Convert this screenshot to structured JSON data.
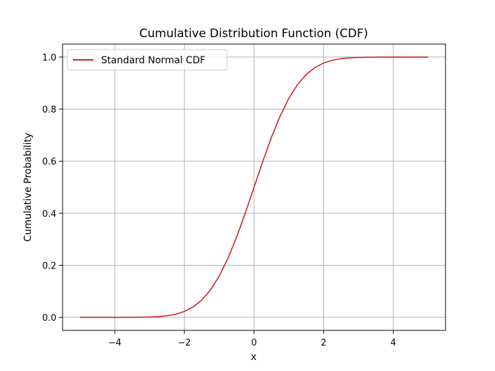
{
  "chart_data": {
    "type": "line",
    "title": "Cumulative Distribution Function (CDF)",
    "xlabel": "x",
    "ylabel": "Cumulative Probability",
    "xlim": [
      -5.5,
      5.5
    ],
    "ylim": [
      -0.05,
      1.05
    ],
    "x_ticks": [
      -4,
      -2,
      0,
      2,
      4
    ],
    "x_tick_labels": [
      "−4",
      "−2",
      "0",
      "2",
      "4"
    ],
    "y_ticks": [
      0.0,
      0.2,
      0.4,
      0.6,
      0.8,
      1.0
    ],
    "y_tick_labels": [
      "0.0",
      "0.2",
      "0.4",
      "0.6",
      "0.8",
      "1.0"
    ],
    "grid": true,
    "legend_position": "top-left",
    "series": [
      {
        "name": "Standard Normal CDF",
        "color": "#cc2222",
        "x": [
          -5.0,
          -4.5,
          -4.0,
          -3.5,
          -3.0,
          -2.75,
          -2.5,
          -2.25,
          -2.0,
          -1.75,
          -1.5,
          -1.25,
          -1.0,
          -0.75,
          -0.5,
          -0.25,
          0.0,
          0.25,
          0.5,
          0.75,
          1.0,
          1.25,
          1.5,
          1.75,
          2.0,
          2.25,
          2.5,
          2.75,
          3.0,
          3.5,
          4.0,
          4.5,
          5.0
        ],
        "y": [
          0.0,
          0.0,
          0.0,
          0.0002,
          0.0013,
          0.003,
          0.0062,
          0.0122,
          0.0228,
          0.0401,
          0.0668,
          0.1056,
          0.1587,
          0.2266,
          0.3085,
          0.4013,
          0.5,
          0.5987,
          0.6915,
          0.7734,
          0.8413,
          0.8944,
          0.9332,
          0.9599,
          0.9772,
          0.9878,
          0.9938,
          0.997,
          0.9987,
          0.9998,
          1.0,
          1.0,
          1.0
        ]
      }
    ]
  }
}
